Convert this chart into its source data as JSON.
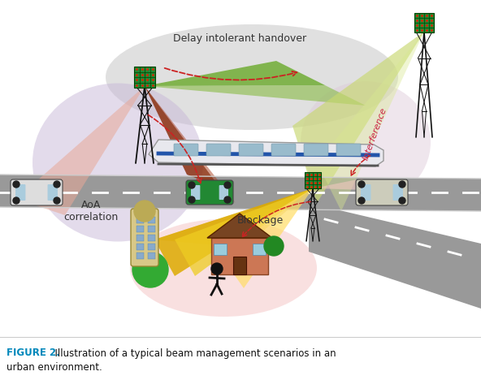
{
  "title": "FIGURE 2.",
  "caption_line1": "  Illustration of a typical beam management scenarios in an",
  "caption_line2": "urban environment.",
  "title_color": "#0088BB",
  "caption_color": "#111111",
  "bg_color": "#ffffff",
  "road_color": "#999999",
  "aoa_circle_color": "#c8b8d8",
  "blockage_circle_color": "#f5c8c8",
  "handover_ellipse_color": "#cccccc",
  "interference_zone_color": "#ddc8d8",
  "tower_color": "#111111",
  "dashed_arrow_color": "#cc2222",
  "interference_text_color": "#cc2244",
  "labels": {
    "delay": "Delay intolerant handover",
    "aoa": "AoA\ncorrelation",
    "blockage": "Blockage",
    "interference": "Interference"
  }
}
